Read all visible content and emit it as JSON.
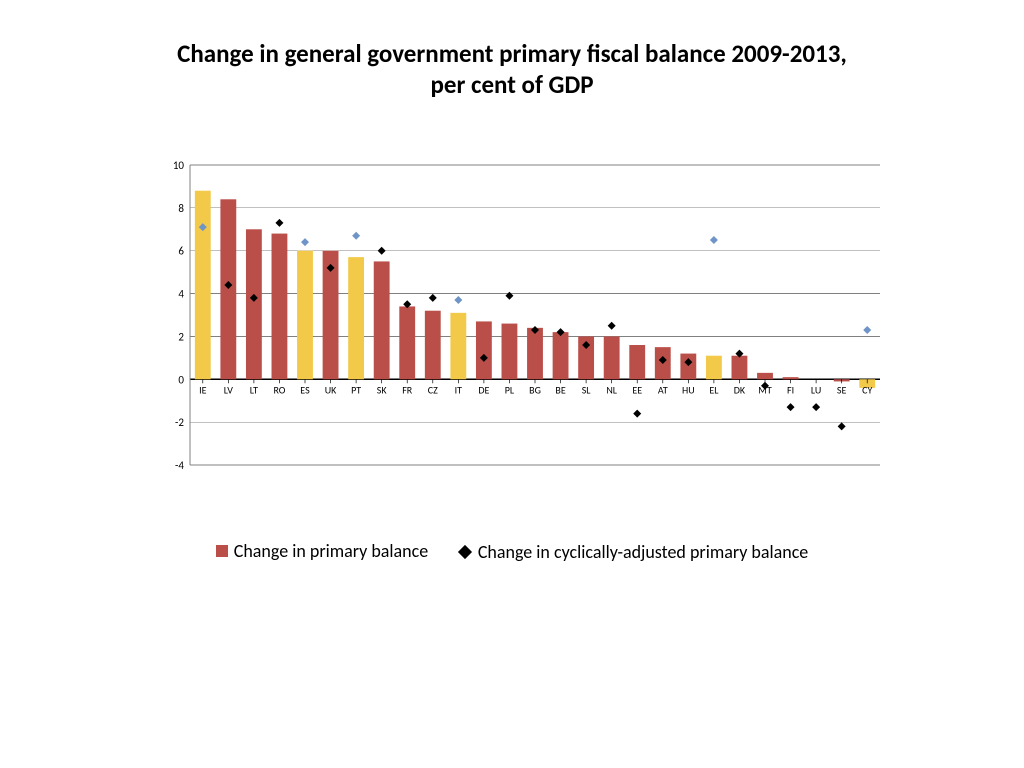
{
  "title": "Change in general government primary fiscal balance 2009-2013,\nper cent of GDP",
  "title_fontsize": 25,
  "chart": {
    "type": "bar",
    "background_color": "#ffffff",
    "plot_border_color": "#808080",
    "grid_color": "#808080",
    "axis_line_color": "#000000",
    "tick_font_size": 11,
    "label_font_size": 10,
    "ylim": [
      -4,
      10
    ],
    "ytick_step": 2,
    "bar_width_ratio": 0.62,
    "categories": [
      "IE",
      "LV",
      "LT",
      "RO",
      "ES",
      "UK",
      "PT",
      "SK",
      "FR",
      "CZ",
      "IT",
      "DE",
      "PL",
      "BG",
      "BE",
      "SL",
      "NL",
      "EE",
      "AT",
      "HU",
      "EL",
      "DK",
      "MT",
      "FI",
      "LU",
      "SE",
      "CY"
    ],
    "bars": [
      {
        "v": 8.8,
        "color": "#f2c948"
      },
      {
        "v": 8.4,
        "color": "#ba4f4a"
      },
      {
        "v": 7.0,
        "color": "#ba4f4a"
      },
      {
        "v": 6.8,
        "color": "#ba4f4a"
      },
      {
        "v": 6.0,
        "color": "#f2c948"
      },
      {
        "v": 6.0,
        "color": "#ba4f4a"
      },
      {
        "v": 5.7,
        "color": "#f2c948"
      },
      {
        "v": 5.5,
        "color": "#ba4f4a"
      },
      {
        "v": 3.4,
        "color": "#ba4f4a"
      },
      {
        "v": 3.2,
        "color": "#ba4f4a"
      },
      {
        "v": 3.1,
        "color": "#f2c948"
      },
      {
        "v": 2.7,
        "color": "#ba4f4a"
      },
      {
        "v": 2.6,
        "color": "#ba4f4a"
      },
      {
        "v": 2.4,
        "color": "#ba4f4a"
      },
      {
        "v": 2.2,
        "color": "#ba4f4a"
      },
      {
        "v": 2.0,
        "color": "#ba4f4a"
      },
      {
        "v": 2.0,
        "color": "#ba4f4a"
      },
      {
        "v": 1.6,
        "color": "#ba4f4a"
      },
      {
        "v": 1.5,
        "color": "#ba4f4a"
      },
      {
        "v": 1.2,
        "color": "#ba4f4a"
      },
      {
        "v": 1.1,
        "color": "#f2c948"
      },
      {
        "v": 1.1,
        "color": "#ba4f4a"
      },
      {
        "v": 0.3,
        "color": "#ba4f4a"
      },
      {
        "v": 0.1,
        "color": "#ba4f4a"
      },
      {
        "v": 0.0,
        "color": "#ba4f4a"
      },
      {
        "v": -0.1,
        "color": "#ba4f4a"
      },
      {
        "v": -0.4,
        "color": "#f2c948"
      }
    ],
    "markers": [
      {
        "i": 0,
        "v": 7.1,
        "color": "#6f94c7"
      },
      {
        "i": 1,
        "v": 4.4,
        "color": "#000000"
      },
      {
        "i": 2,
        "v": 3.8,
        "color": "#000000"
      },
      {
        "i": 3,
        "v": 7.3,
        "color": "#000000"
      },
      {
        "i": 4,
        "v": 6.4,
        "color": "#6f94c7"
      },
      {
        "i": 5,
        "v": 5.2,
        "color": "#000000"
      },
      {
        "i": 6,
        "v": 6.7,
        "color": "#6f94c7"
      },
      {
        "i": 7,
        "v": 6.0,
        "color": "#000000"
      },
      {
        "i": 8,
        "v": 3.5,
        "color": "#000000"
      },
      {
        "i": 9,
        "v": 3.8,
        "color": "#000000"
      },
      {
        "i": 10,
        "v": 3.7,
        "color": "#6f94c7"
      },
      {
        "i": 11,
        "v": 1.0,
        "color": "#000000"
      },
      {
        "i": 12,
        "v": 3.9,
        "color": "#000000"
      },
      {
        "i": 13,
        "v": 2.3,
        "color": "#000000"
      },
      {
        "i": 14,
        "v": 2.2,
        "color": "#000000"
      },
      {
        "i": 15,
        "v": 1.6,
        "color": "#000000"
      },
      {
        "i": 16,
        "v": 2.5,
        "color": "#000000"
      },
      {
        "i": 17,
        "v": -1.6,
        "color": "#000000"
      },
      {
        "i": 18,
        "v": 0.9,
        "color": "#000000"
      },
      {
        "i": 19,
        "v": 0.8,
        "color": "#000000"
      },
      {
        "i": 20,
        "v": 6.5,
        "color": "#6f94c7"
      },
      {
        "i": 21,
        "v": 1.2,
        "color": "#000000"
      },
      {
        "i": 22,
        "v": -0.3,
        "color": "#000000"
      },
      {
        "i": 23,
        "v": -1.3,
        "color": "#000000"
      },
      {
        "i": 24,
        "v": -1.3,
        "color": "#000000"
      },
      {
        "i": 25,
        "v": -2.2,
        "color": "#000000"
      },
      {
        "i": 26,
        "v": 2.3,
        "color": "#6f94c7"
      }
    ],
    "marker_size": 8
  },
  "legend": {
    "series1_label": "Change in primary balance",
    "series1_color": "#ba4f4a",
    "series2_label": "Change in cyclically-adjusted primary balance",
    "series2_color": "#000000",
    "font_size": 18
  }
}
